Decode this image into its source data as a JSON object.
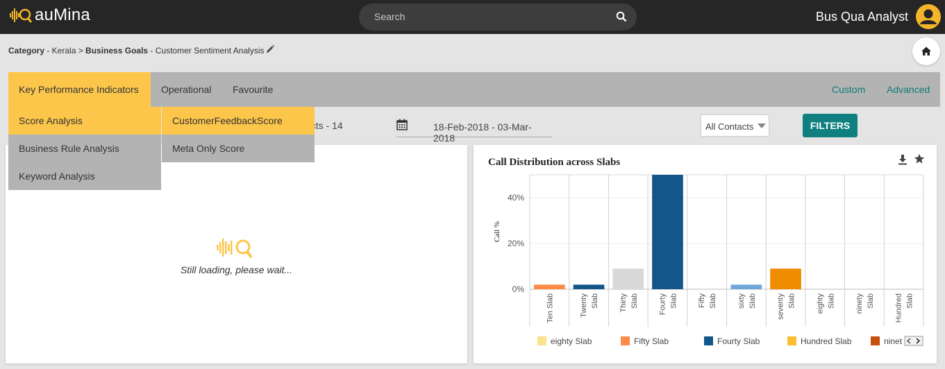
{
  "app": {
    "logo_text": "auMina",
    "user_name": "Bus Qua Analyst"
  },
  "search": {
    "placeholder": "Search"
  },
  "breadcrumb": {
    "category_label": "Category",
    "category_value": " - Kerala > ",
    "goals_label": "Business Goals",
    "goals_value": " - Customer Sentiment Analysis"
  },
  "nav": {
    "tabs": [
      {
        "label": "Key Performance Indicators"
      },
      {
        "label": "Operational"
      },
      {
        "label": "Favourite"
      }
    ],
    "right": [
      {
        "label": "Custom"
      },
      {
        "label": "Advanced"
      }
    ]
  },
  "menu_level1": [
    {
      "label": "Score Analysis"
    },
    {
      "label": "Business Rule Analysis"
    },
    {
      "label": "Keyword Analysis"
    }
  ],
  "menu_level2": [
    {
      "label": "CustomerFeedbackScore"
    },
    {
      "label": "Meta Only Score"
    }
  ],
  "filters": {
    "contacts_text": "acts - 14",
    "date_range": "18-Feb-2018 - 03-Mar-2018",
    "contact_select": "All Contacts",
    "button_label": "FILTERS"
  },
  "left_panel": {
    "loading_text": "Still loading, please wait..."
  },
  "colors": {
    "accent": "#fcc64b",
    "teal": "#0f7f7f",
    "ten": "#fb8c48",
    "twenty": "#12568a",
    "thirty": "#d8d8d8",
    "fourty": "#12568a",
    "sixty": "#6fa8d8",
    "seventy": "#f08c00"
  },
  "chart_data": {
    "type": "bar",
    "title": "Call Distribution across  Slabs",
    "ylabel": "Call %",
    "xlabel": "",
    "ylim": [
      -5,
      50
    ],
    "yticks": [
      "0%",
      "20%",
      "40%"
    ],
    "ytick_values": [
      0,
      20,
      40
    ],
    "grid": true,
    "categories": [
      "Ten Slab",
      "Twenty Slab",
      "Thirty Slab",
      "Fourty Slab",
      "Fifty Slab",
      "sixty Slab",
      "seventy Slab",
      "eighty Slab",
      "ninety Slab",
      "Hundred Slab"
    ],
    "category_lines": [
      [
        "Ten Slab"
      ],
      [
        "Twenty",
        "Slab"
      ],
      [
        "Thirty",
        "Slab"
      ],
      [
        "Fourty",
        "Slab"
      ],
      [
        "Fifty",
        "Slab"
      ],
      [
        "sixty",
        "Slab"
      ],
      [
        "seventy",
        "Slab"
      ],
      [
        "eighty",
        "Slab"
      ],
      [
        "ninety",
        "Slab"
      ],
      [
        "Hundred",
        "Slab"
      ]
    ],
    "values": [
      2,
      2,
      9,
      50,
      0,
      2,
      9,
      0,
      0,
      0
    ],
    "bar_colors": [
      "#fb8c48",
      "#12568a",
      "#d8d8d8",
      "#12568a",
      null,
      "#6fa8d8",
      "#f08c00",
      null,
      null,
      null
    ],
    "legend": [
      {
        "name": "eighty Slab",
        "color": "#fde28d"
      },
      {
        "name": "Fifty Slab",
        "color": "#fb8c48"
      },
      {
        "name": "Fourty Slab",
        "color": "#12568a"
      },
      {
        "name": "Hundred Slab",
        "color": "#fbbd32"
      },
      {
        "name": "ninet",
        "color": "#c6500d"
      }
    ],
    "legend_placement": "bottom"
  }
}
